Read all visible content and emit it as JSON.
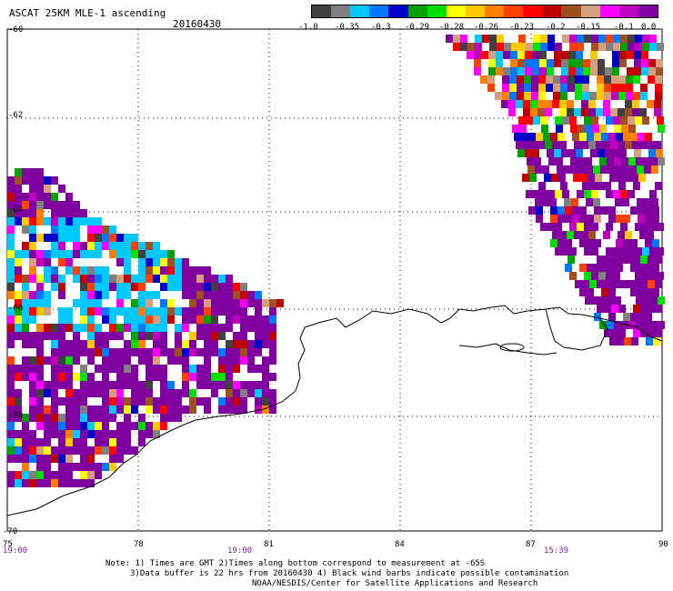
{
  "title": "ASCAT 25KM MLE-1 ascending",
  "date": "20160430",
  "colorbar": {
    "colors": [
      "#404040",
      "#808080",
      "#00c8ff",
      "#0078ff",
      "#0000c8",
      "#00a000",
      "#00e000",
      "#ffff00",
      "#ffc800",
      "#ff8000",
      "#ff4000",
      "#ff0000",
      "#c00000",
      "#a05020",
      "#d4a080",
      "#ff00ff",
      "#c000c0",
      "#8000a0"
    ],
    "labels": [
      "-1.0",
      "-0.35",
      "-0.3",
      "-0.29",
      "-0.28",
      "-0.26",
      "-0.23",
      "-0.2",
      "-0.15",
      "-0.1",
      "0.0"
    ]
  },
  "axes": {
    "lat_labels": [
      "-60",
      "-62",
      "-64",
      "-66",
      "-68",
      "-70"
    ],
    "lon_labels": [
      "75",
      "78",
      "81",
      "84",
      "87",
      "90"
    ],
    "time_labels": [
      "19:00",
      "19:00",
      "15:39"
    ]
  },
  "notes": [
    "Note: 1) Times are GMT 2)Times along bottom correspond to measurement at -65S",
    "3)Data buffer is 22 hrs from 20160430 4) Black wind barbs indicate possible contamination",
    "NOAA/NESDIS/Center for Satellite Applications and Research"
  ]
}
